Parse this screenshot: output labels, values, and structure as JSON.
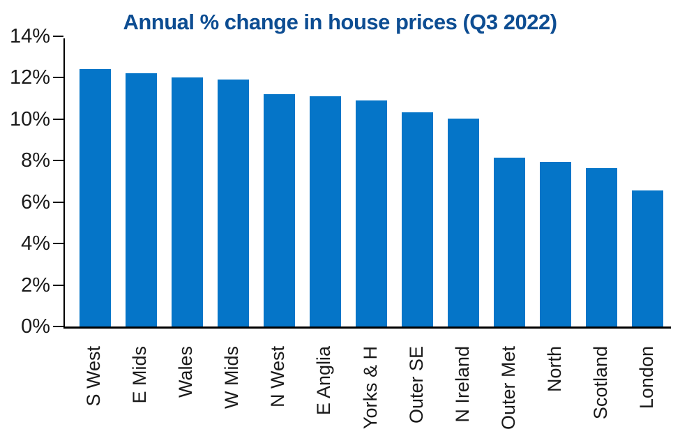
{
  "chart_data": {
    "type": "bar",
    "title": "Annual % change in house prices (Q3 2022)",
    "categories": [
      "S West",
      "E Mids",
      "Wales",
      "W Mids",
      "N West",
      "E Anglia",
      "Yorks & H",
      "Outer SE",
      "N Ireland",
      "Outer Met",
      "North",
      "Scotland",
      "London"
    ],
    "values": [
      12.5,
      12.3,
      12.1,
      12.0,
      11.3,
      11.2,
      11.0,
      10.4,
      10.1,
      8.2,
      8.0,
      7.7,
      6.6
    ],
    "xlabel": "",
    "ylabel": "",
    "ylim": [
      0,
      14
    ],
    "ytick_values": [
      0,
      2,
      4,
      6,
      8,
      10,
      12,
      14
    ],
    "ytick_labels": [
      "0%",
      "2%",
      "4%",
      "6%",
      "8%",
      "10%",
      "12%",
      "14%"
    ],
    "grid": false,
    "legend": "none",
    "bar_color": "#0575c8",
    "title_color": "#0d4d92",
    "axis_color": "#000000",
    "tick_text_color": "#1a1a1a",
    "background_color": "#ffffff"
  }
}
